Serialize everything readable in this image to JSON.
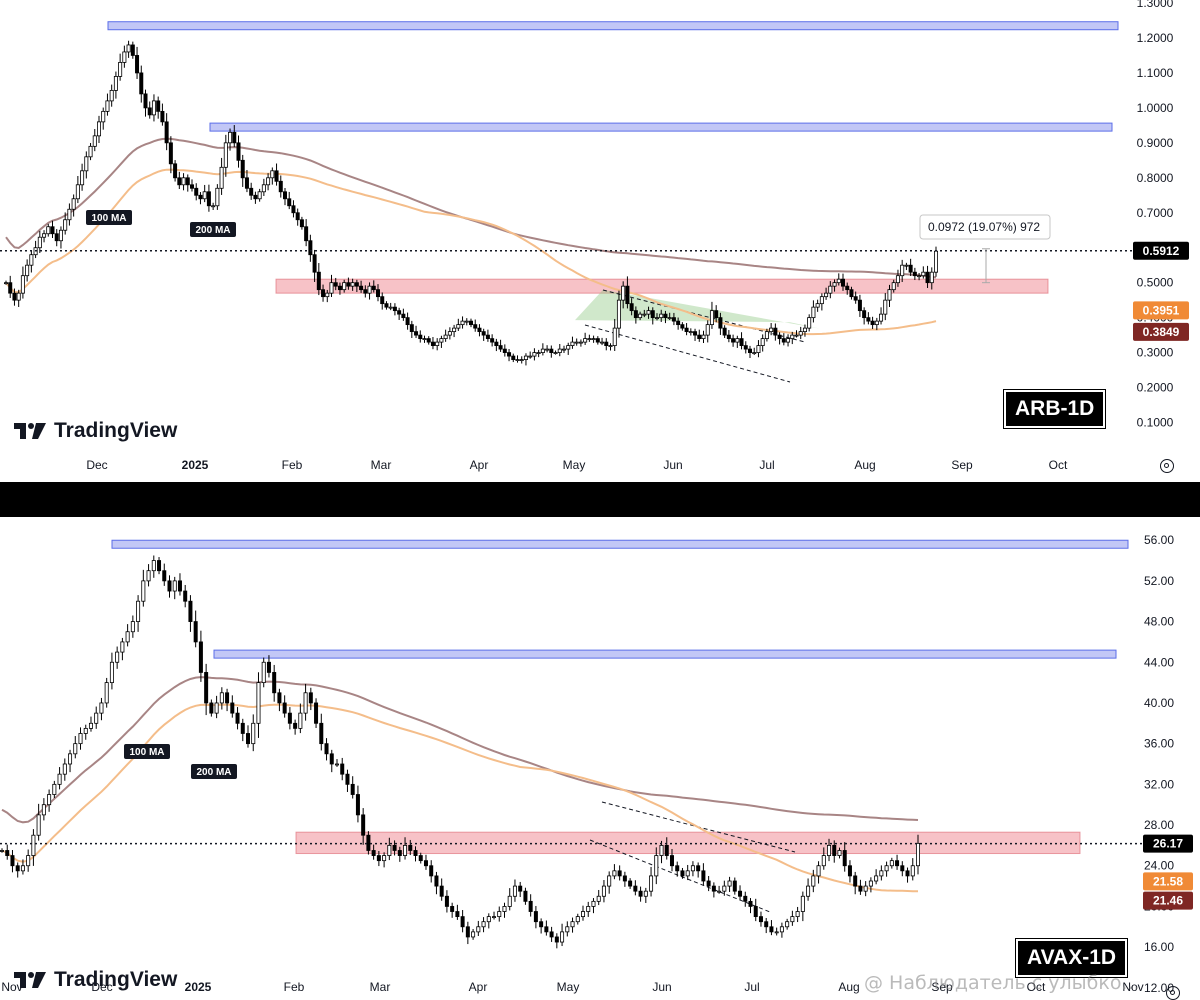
{
  "chart_data": [
    {
      "type": "candlestick",
      "ticker": "ARB-1D",
      "price_ticks": [
        "1.3000",
        "1.2000",
        "1.1000",
        "1.0000",
        "0.9000",
        "0.8000",
        "0.7000",
        "0.6000",
        "0.5000",
        "0.4000",
        "0.3000",
        "0.2000",
        "0.1000"
      ],
      "time_labels": [
        "Dec",
        "2025",
        "Feb",
        "Mar",
        "Apr",
        "May",
        "Jun",
        "Jul",
        "Aug",
        "Sep",
        "Oct"
      ],
      "ylim": [
        0.07,
        1.3
      ],
      "current_price": "0.5912",
      "ma_labels": {
        "ma100": "100 MA",
        "ma200": "200 MA"
      },
      "ma_values": {
        "ma100": "0.3951",
        "ma200": "0.3849"
      },
      "measure_label": "0.0972 (19.07%) 972",
      "resistance_levels": [
        1.235,
        0.945
      ],
      "supply_zone": [
        0.47,
        0.51
      ],
      "prices": [
        0.5,
        0.47,
        0.45,
        0.47,
        0.52,
        0.55,
        0.58,
        0.6,
        0.63,
        0.64,
        0.66,
        0.64,
        0.62,
        0.65,
        0.68,
        0.71,
        0.74,
        0.78,
        0.82,
        0.86,
        0.89,
        0.92,
        0.96,
        0.99,
        1.02,
        1.05,
        1.09,
        1.13,
        1.16,
        1.18,
        1.15,
        1.1,
        1.04,
        1.0,
        0.98,
        1.02,
        0.99,
        0.96,
        0.9,
        0.84,
        0.8,
        0.78,
        0.8,
        0.78,
        0.77,
        0.75,
        0.74,
        0.76,
        0.72,
        0.72,
        0.77,
        0.83,
        0.9,
        0.93,
        0.9,
        0.85,
        0.8,
        0.77,
        0.75,
        0.74,
        0.76,
        0.78,
        0.8,
        0.82,
        0.79,
        0.76,
        0.74,
        0.72,
        0.7,
        0.68,
        0.66,
        0.62,
        0.58,
        0.53,
        0.48,
        0.46,
        0.47,
        0.5,
        0.49,
        0.48,
        0.5,
        0.49,
        0.5,
        0.49,
        0.48,
        0.47,
        0.49,
        0.48,
        0.46,
        0.44,
        0.43,
        0.43,
        0.42,
        0.41,
        0.4,
        0.38,
        0.36,
        0.35,
        0.34,
        0.34,
        0.33,
        0.32,
        0.33,
        0.34,
        0.35,
        0.36,
        0.37,
        0.38,
        0.39,
        0.39,
        0.38,
        0.37,
        0.36,
        0.35,
        0.34,
        0.33,
        0.32,
        0.31,
        0.3,
        0.29,
        0.28,
        0.28,
        0.28,
        0.29,
        0.29,
        0.3,
        0.3,
        0.31,
        0.31,
        0.3,
        0.3,
        0.31,
        0.31,
        0.32,
        0.33,
        0.33,
        0.33,
        0.34,
        0.34,
        0.34,
        0.33,
        0.33,
        0.32,
        0.32,
        0.37,
        0.45,
        0.49,
        0.44,
        0.42,
        0.4,
        0.41,
        0.41,
        0.42,
        0.4,
        0.4,
        0.41,
        0.4,
        0.4,
        0.39,
        0.38,
        0.37,
        0.36,
        0.36,
        0.35,
        0.34,
        0.35,
        0.38,
        0.42,
        0.4,
        0.37,
        0.35,
        0.34,
        0.33,
        0.34,
        0.32,
        0.31,
        0.3,
        0.3,
        0.32,
        0.34,
        0.36,
        0.37,
        0.35,
        0.34,
        0.33,
        0.34,
        0.35,
        0.35,
        0.36,
        0.37,
        0.4,
        0.43,
        0.44,
        0.46,
        0.47,
        0.49,
        0.5,
        0.51,
        0.49,
        0.48,
        0.46,
        0.45,
        0.42,
        0.4,
        0.39,
        0.38,
        0.39,
        0.41,
        0.45,
        0.48,
        0.5,
        0.52,
        0.55,
        0.55,
        0.53,
        0.52,
        0.52,
        0.53,
        0.5,
        0.53,
        0.59
      ]
    },
    {
      "type": "candlestick",
      "ticker": "AVAX-1D",
      "price_ticks": [
        "56.00",
        "52.00",
        "48.00",
        "44.00",
        "40.00",
        "36.00",
        "32.00",
        "28.00",
        "24.00",
        "20.00",
        "16.00",
        "12.00"
      ],
      "time_labels": [
        "Nov",
        "Dec",
        "2025",
        "Feb",
        "Mar",
        "Apr",
        "May",
        "Jun",
        "Jul",
        "Aug",
        "Sep",
        "Oct",
        "Nov"
      ],
      "ylim": [
        11,
        57
      ],
      "current_price": "26.17",
      "ma_labels": {
        "ma100": "100 MA",
        "ma200": "200 MA"
      },
      "ma_values": {
        "ma100": "21.58",
        "ma200": "21.46"
      },
      "resistance_levels": [
        55.6,
        44.8
      ],
      "supply_zone": [
        25.2,
        27.3
      ],
      "prices": [
        25.5,
        25,
        24,
        23.5,
        24,
        25,
        27,
        29,
        30,
        31,
        32,
        33,
        34,
        35,
        36,
        37,
        37.5,
        38,
        39,
        40,
        42,
        44,
        45,
        46,
        47,
        48,
        50,
        52,
        53,
        54,
        53,
        52,
        51,
        52,
        51,
        50,
        48,
        46,
        43,
        40,
        39,
        40,
        41,
        40,
        39,
        38,
        37,
        36,
        38,
        42,
        44,
        43,
        41,
        40,
        39,
        38,
        37.5,
        39,
        41,
        40,
        38,
        36,
        35,
        34,
        34,
        33,
        32,
        31,
        29,
        27,
        25.5,
        25,
        24.5,
        25,
        26,
        25.5,
        25,
        26,
        25.5,
        25,
        24.5,
        24,
        23,
        22,
        21,
        20,
        19.5,
        19,
        18,
        17,
        17.5,
        18,
        18.5,
        19,
        19,
        19.5,
        20,
        21,
        22,
        21.5,
        20.5,
        19.5,
        18.5,
        18,
        17.5,
        17,
        16.5,
        17.5,
        18,
        18.5,
        19,
        19.5,
        20,
        20.5,
        21,
        22,
        23,
        23.5,
        23,
        22.5,
        22,
        21.5,
        21,
        21.5,
        23,
        25,
        26,
        25,
        24,
        23.5,
        23,
        23.5,
        24,
        23.5,
        22.5,
        22,
        21.5,
        21.5,
        22,
        22.5,
        21.5,
        21,
        20.5,
        20,
        19,
        18.5,
        18,
        17.5,
        17.5,
        18,
        18.5,
        19,
        19.5,
        21,
        22,
        23,
        24,
        25,
        26,
        25,
        25.5,
        24,
        23,
        22,
        21.5,
        22,
        22.5,
        23,
        23.5,
        24,
        24.5,
        24,
        23.5,
        23,
        24,
        26.2
      ]
    }
  ],
  "branding": {
    "logo_text": "TradingView"
  },
  "watermark": "@ Наблюдатель с улыбко..."
}
